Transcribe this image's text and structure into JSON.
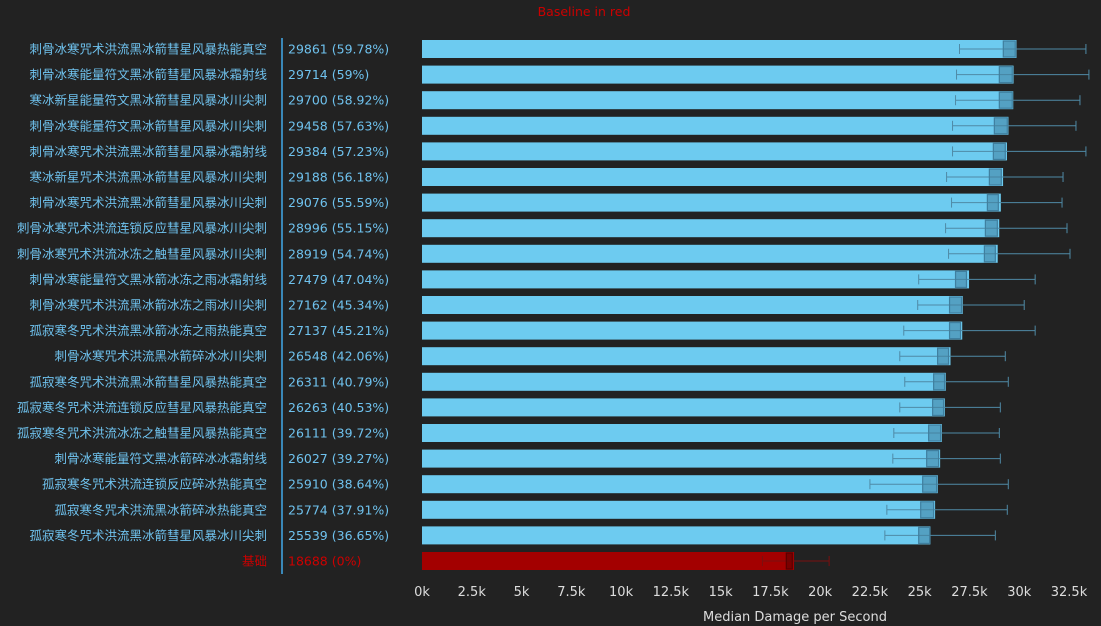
{
  "chart_data": {
    "type": "bar",
    "orientation": "horizontal",
    "note": "Baseline in red",
    "xlabel": "Median Damage per Second",
    "xlim": [
      0,
      32500
    ],
    "xticks": [
      "0k",
      "2.5k",
      "5k",
      "7.5k",
      "10k",
      "12.5k",
      "15k",
      "17.5k",
      "20k",
      "22.5k",
      "25k",
      "27.5k",
      "30k",
      "32.5k"
    ],
    "grid": false,
    "legend": "none",
    "colors": {
      "bar": "#6dcbf0",
      "box": "#3f7f9f",
      "whisker": "#4f8aa6",
      "baseline_bar": "#a30000",
      "baseline_box": "#5a0000",
      "baseline_whisker": "#7a1010",
      "divider": "#3a88b8",
      "background": "#222222"
    },
    "categories": [
      "刺骨冰寒咒术洪流黑冰箭彗星风暴热能真空",
      "刺骨冰寒能量符文黑冰箭彗星风暴冰霜射线",
      "寒冰新星能量符文黑冰箭彗星风暴冰川尖刺",
      "刺骨冰寒能量符文黑冰箭彗星风暴冰川尖刺",
      "刺骨冰寒咒术洪流黑冰箭彗星风暴冰霜射线",
      "寒冰新星咒术洪流黑冰箭彗星风暴冰川尖刺",
      "刺骨冰寒咒术洪流黑冰箭彗星风暴冰川尖刺",
      "刺骨冰寒咒术洪流连锁反应彗星风暴冰川尖刺",
      "刺骨冰寒咒术洪流冰冻之触彗星风暴冰川尖刺",
      "刺骨冰寒能量符文黑冰箭冰冻之雨冰霜射线",
      "刺骨冰寒咒术洪流黑冰箭冰冻之雨冰川尖刺",
      "孤寂寒冬咒术洪流黑冰箭冰冻之雨热能真空",
      "刺骨冰寒咒术洪流黑冰箭碎冰冰川尖刺",
      "孤寂寒冬咒术洪流黑冰箭彗星风暴热能真空",
      "孤寂寒冬咒术洪流连锁反应彗星风暴热能真空",
      "孤寂寒冬咒术洪流冰冻之触彗星风暴热能真空",
      "刺骨冰寒能量符文黑冰箭碎冰冰霜射线",
      "孤寂寒冬咒术洪流连锁反应碎冰热能真空",
      "孤寂寒冬咒术洪流黑冰箭碎冰热能真空",
      "孤寂寒冬咒术洪流黑冰箭彗星风暴冰川尖刺",
      "基础"
    ],
    "values": [
      29861,
      29714,
      29700,
      29458,
      29384,
      29188,
      29076,
      28996,
      28919,
      27479,
      27162,
      27137,
      26548,
      26311,
      26263,
      26111,
      26027,
      25910,
      25774,
      25539,
      18688
    ],
    "value_labels": [
      "29861 (59.78%)",
      "29714 (59%)",
      "29700 (58.92%)",
      "29458 (57.63%)",
      "29384 (57.23%)",
      "29188 (56.18%)",
      "29076 (55.59%)",
      "28996 (55.15%)",
      "28919 (54.74%)",
      "27479 (47.04%)",
      "27162 (45.34%)",
      "27137 (45.21%)",
      "26548 (42.06%)",
      "26311 (40.79%)",
      "26263 (40.53%)",
      "26111 (39.72%)",
      "26027 (39.27%)",
      "25910 (38.64%)",
      "25774 (37.91%)",
      "25539 (36.65%)",
      "18688 (0%)"
    ],
    "baseline_index": 20,
    "distribution": {
      "whisker_low": [
        27000,
        26850,
        26800,
        26650,
        26650,
        26350,
        26600,
        26300,
        26450,
        24950,
        24900,
        24200,
        24000,
        24250,
        24000,
        23700,
        23650,
        22500,
        23350,
        23250,
        17100
      ],
      "box_low": [
        29200,
        29000,
        29000,
        28750,
        28700,
        28500,
        28400,
        28300,
        28250,
        26800,
        26500,
        26500,
        25900,
        25700,
        25650,
        25450,
        25350,
        25150,
        25050,
        24950,
        18300
      ],
      "box_high": [
        29800,
        29650,
        29650,
        29400,
        29300,
        29100,
        28950,
        28900,
        28800,
        27350,
        27100,
        27050,
        26450,
        26250,
        26200,
        26050,
        25950,
        25850,
        25700,
        25500,
        18600
      ],
      "whisker_high": [
        33350,
        33500,
        33050,
        32850,
        33350,
        32200,
        32150,
        32400,
        32550,
        30800,
        30250,
        30800,
        29300,
        29450,
        29050,
        29000,
        29050,
        29450,
        29400,
        28800,
        20450
      ]
    }
  }
}
